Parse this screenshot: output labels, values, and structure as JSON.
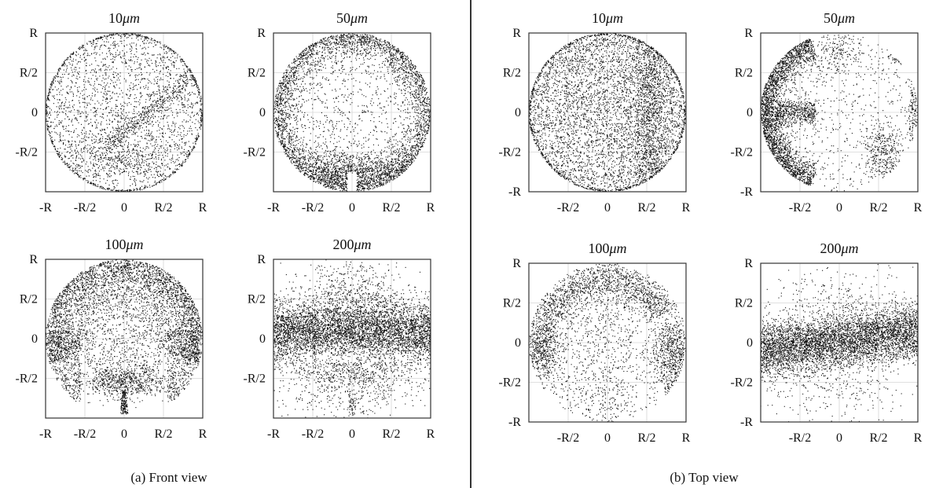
{
  "figure": {
    "divider": true,
    "dot_color": "#111111",
    "grid_color": "#d6d6d6",
    "axis_color": "#333333"
  },
  "groups": [
    {
      "caption": "(a)  Front view"
    },
    {
      "caption": "(b)  Top view"
    }
  ],
  "chart_data": [
    {
      "type": "scatter",
      "group": 0,
      "title": "10μm",
      "title_parts": {
        "number": "10",
        "unit": "μm"
      },
      "x_tick_labels": [
        "-R",
        "-R/2",
        "0",
        "R/2",
        "R"
      ],
      "y_tick_labels": [
        "R",
        "R/2",
        "0",
        "-R/2"
      ],
      "xlim": [
        -1,
        1
      ],
      "ylim": [
        -1,
        1
      ],
      "grid": true,
      "distribution": "uniform disc, denser rim, diagonal streak toward upper right, low gap at bottom center"
    },
    {
      "type": "scatter",
      "group": 0,
      "title": "50μm",
      "title_parts": {
        "number": "50",
        "unit": "μm"
      },
      "x_tick_labels": [
        "-R",
        "-R/2",
        "0",
        "R/2",
        "R"
      ],
      "y_tick_labels": [
        "R",
        "R/2",
        "0",
        "-R/2"
      ],
      "xlim": [
        -1,
        1
      ],
      "ylim": [
        -1,
        1
      ],
      "grid": true,
      "distribution": "dense ring near the circular wall, sparse interior, gap at bottom center"
    },
    {
      "type": "scatter",
      "group": 0,
      "title": "100μm",
      "title_parts": {
        "number": "100",
        "unit": "μm"
      },
      "x_tick_labels": [
        "-R",
        "-R/2",
        "0",
        "R/2",
        "R"
      ],
      "y_tick_labels": [
        "R",
        "R/2",
        "0",
        "-R/2"
      ],
      "xlim": [
        -1,
        1
      ],
      "ylim": [
        -1,
        1
      ],
      "grid": true,
      "distribution": "dense upper dome, hollow lower center with spike at bottom center"
    },
    {
      "type": "scatter",
      "group": 0,
      "title": "200μm",
      "title_parts": {
        "number": "200",
        "unit": "μm"
      },
      "x_tick_labels": [
        "-R",
        "-R/2",
        "0",
        "R/2",
        "R"
      ],
      "y_tick_labels": [
        "R",
        "R/2",
        "0",
        "-R/2"
      ],
      "xlim": [
        -1,
        1
      ],
      "ylim": [
        -1,
        1
      ],
      "grid": true,
      "distribution": "dense horizontal band slightly above center, sparse plume below center"
    },
    {
      "type": "scatter",
      "group": 1,
      "title": "10μm",
      "title_parts": {
        "number": "10",
        "unit": "μm"
      },
      "x_tick_labels": [
        "-R/2",
        "0",
        "R/2",
        "R"
      ],
      "y_tick_labels": [
        "R",
        "R/2",
        "0",
        "-R/2",
        "-R"
      ],
      "xlim": [
        -1,
        1
      ],
      "ylim": [
        -1,
        1
      ],
      "grid": true,
      "distribution": "uniform disc with denser right side band"
    },
    {
      "type": "scatter",
      "group": 1,
      "title": "50μm",
      "title_parts": {
        "number": "50",
        "unit": "μm"
      },
      "x_tick_labels": [
        "-R/2",
        "0",
        "R/2",
        "R"
      ],
      "y_tick_labels": [
        "R",
        "R/2",
        "0",
        "-R/2",
        "-R"
      ],
      "xlim": [
        -1,
        1
      ],
      "ylim": [
        -1,
        1
      ],
      "grid": true,
      "distribution": "dense crescent at left wall, sparse scatter elsewhere, small clusters at right"
    },
    {
      "type": "scatter",
      "group": 1,
      "title": "100μm",
      "title_parts": {
        "number": "100",
        "unit": "μm"
      },
      "x_tick_labels": [
        "-R/2",
        "0",
        "R/2",
        "R"
      ],
      "y_tick_labels": [
        "R",
        "R/2",
        "0",
        "-R/2",
        "-R"
      ],
      "xlim": [
        -1,
        1
      ],
      "ylim": [
        -1,
        1
      ],
      "grid": true,
      "distribution": "two side lobes at left and right, arc across top, sparse center"
    },
    {
      "type": "scatter",
      "group": 1,
      "title": "200μm",
      "title_parts": {
        "number": "200",
        "unit": "μm"
      },
      "x_tick_labels": [
        "-R/2",
        "0",
        "R/2",
        "R"
      ],
      "y_tick_labels": [
        "R",
        "R/2",
        "0",
        "-R/2",
        "-R"
      ],
      "xlim": [
        -1,
        1
      ],
      "ylim": [
        -1,
        1
      ],
      "grid": true,
      "distribution": "dense horizontal band about center, sparse outliers above and below"
    }
  ]
}
